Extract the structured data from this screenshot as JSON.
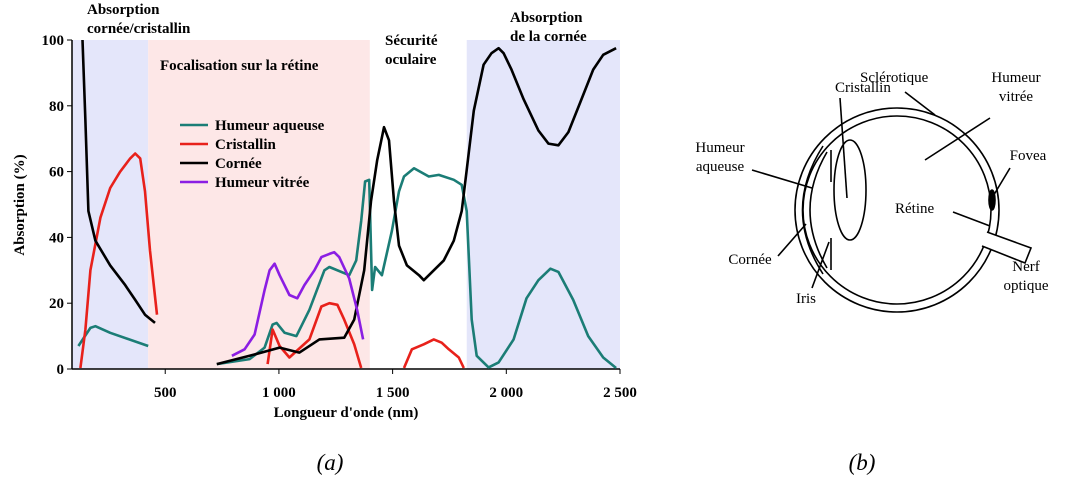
{
  "chart_data": {
    "type": "line",
    "caption": "(a)",
    "x_label": "Longueur d'onde (nm)",
    "y_label": "Absorption (%)",
    "xlim": [
      90,
      2500
    ],
    "ylim": [
      0,
      100
    ],
    "xticks": [
      500,
      {
        "value": 1000,
        "label": "1 000"
      },
      {
        "value": 1500,
        "label": "1 500"
      },
      {
        "value": 2000,
        "label": "2 000"
      },
      {
        "value": 2500,
        "label": "2 500"
      }
    ],
    "yticks": [
      0,
      20,
      40,
      60,
      80,
      100
    ],
    "regions": [
      {
        "label": [
          "Absorption",
          "cornée/cristallin"
        ],
        "x": [
          90,
          425
        ],
        "color": "#e4e6fa"
      },
      {
        "label": [
          "Focalisation sur la rétine"
        ],
        "x": [
          425,
          1400
        ],
        "color": "#fde7e7"
      },
      {
        "label": [
          "Sécurité",
          "oculaire"
        ],
        "x": [
          1400,
          1826
        ],
        "color": "#ffffff"
      },
      {
        "label": [
          "Absorption",
          "de la cornée"
        ],
        "x": [
          1826,
          2500
        ],
        "color": "#e4e6fa"
      }
    ],
    "series": [
      {
        "name": "Humeur aqueuse",
        "color": "#1b7d76",
        "x": [
          118,
          171,
          193,
          258,
          425,
          null,
          727,
          871,
          937,
          972,
          990,
          1025,
          1077,
          1134,
          1200,
          1222,
          1309,
          1340,
          1362,
          1379,
          1397,
          1410,
          1423,
          1453,
          1497,
          1528,
          1550,
          1594,
          1659,
          1703,
          1769,
          1804,
          1826,
          1848,
          1870,
          1922,
          1966,
          2032,
          2089,
          2141,
          2194,
          2229,
          2294,
          2360,
          2426,
          2483
        ],
        "values": [
          7,
          12.5,
          13,
          11,
          7,
          null,
          1.5,
          3,
          6.5,
          13.5,
          14,
          11,
          10,
          18,
          30,
          31,
          28.5,
          33,
          45,
          57,
          57.5,
          24,
          31,
          28.5,
          42,
          54,
          58.5,
          61,
          58.5,
          59,
          57.5,
          56,
          48,
          15,
          4,
          0.5,
          2,
          9,
          21.5,
          27,
          30.5,
          29.5,
          21,
          10,
          3.5,
          0.3
        ]
      },
      {
        "name": "Cristallin",
        "color": "#e8211b",
        "x": [
          127,
          149,
          171,
          215,
          258,
          302,
          346,
          368,
          390,
          411,
          433,
          464,
          null,
          950,
          972,
          1003,
          1046,
          1134,
          1187,
          1222,
          1257,
          1287,
          1331,
          1362,
          null,
          1550,
          1585,
          1637,
          1681,
          1716,
          1747,
          1791,
          1813
        ],
        "values": [
          0.3,
          12,
          30,
          46,
          55,
          60,
          64,
          65.5,
          64,
          54,
          36,
          16.5,
          null,
          1.5,
          12,
          7,
          3.5,
          9,
          19,
          20,
          19.5,
          15,
          7.5,
          0.3,
          null,
          0.3,
          6,
          7.5,
          9,
          8,
          6,
          3.5,
          0.3
        ]
      },
      {
        "name": "Cornée",
        "color": "#000000",
        "x": [
          136,
          149,
          162,
          193,
          258,
          324,
          368,
          411,
          455,
          null,
          727,
          871,
          1003,
          1090,
          1178,
          1287,
          1331,
          1375,
          1405,
          1432,
          1462,
          1484,
          1506,
          1528,
          1563,
          1616,
          1637,
          1681,
          1725,
          1769,
          1804,
          1826,
          1857,
          1900,
          1935,
          1966,
          1988,
          2023,
          2076,
          2141,
          2185,
          2229,
          2273,
          2325,
          2382,
          2426,
          2483
        ],
        "values": [
          100,
          75.5,
          48,
          39,
          31.5,
          25.5,
          21,
          16.5,
          14,
          null,
          1.5,
          4,
          6.5,
          5,
          9,
          9.5,
          15,
          30,
          51,
          63.5,
          73.5,
          69.5,
          51,
          37.5,
          31.5,
          28.5,
          27,
          30,
          33,
          39,
          48,
          60.5,
          78.5,
          92.5,
          96,
          97.5,
          96,
          91,
          82,
          72.5,
          68.5,
          68,
          72,
          81,
          91,
          95.5,
          97.5
        ]
      },
      {
        "name": "Humeur vitrée",
        "color": "#8b1ee3",
        "x": [
          793,
          849,
          893,
          937,
          959,
          981,
          1003,
          1046,
          1081,
          1112,
          1156,
          1187,
          1222,
          1243,
          1265,
          1309,
          1344,
          1370
        ],
        "values": [
          4,
          6,
          10.5,
          24,
          30,
          32,
          28.5,
          22.5,
          21.5,
          25.5,
          30,
          34,
          35,
          35.5,
          34,
          27.5,
          18,
          9
        ]
      }
    ]
  },
  "diagram": {
    "caption": "(b)",
    "labels": [
      [
        "Cristallin"
      ],
      [
        "Sclérotique"
      ],
      [
        "Humeur",
        "vitrée"
      ],
      [
        "Humeur",
        "aqueuse"
      ],
      [
        "Fovea"
      ],
      [
        "Rétine"
      ],
      [
        "Cornée"
      ],
      [
        "Iris"
      ],
      [
        "Nerf",
        "optique"
      ]
    ]
  }
}
